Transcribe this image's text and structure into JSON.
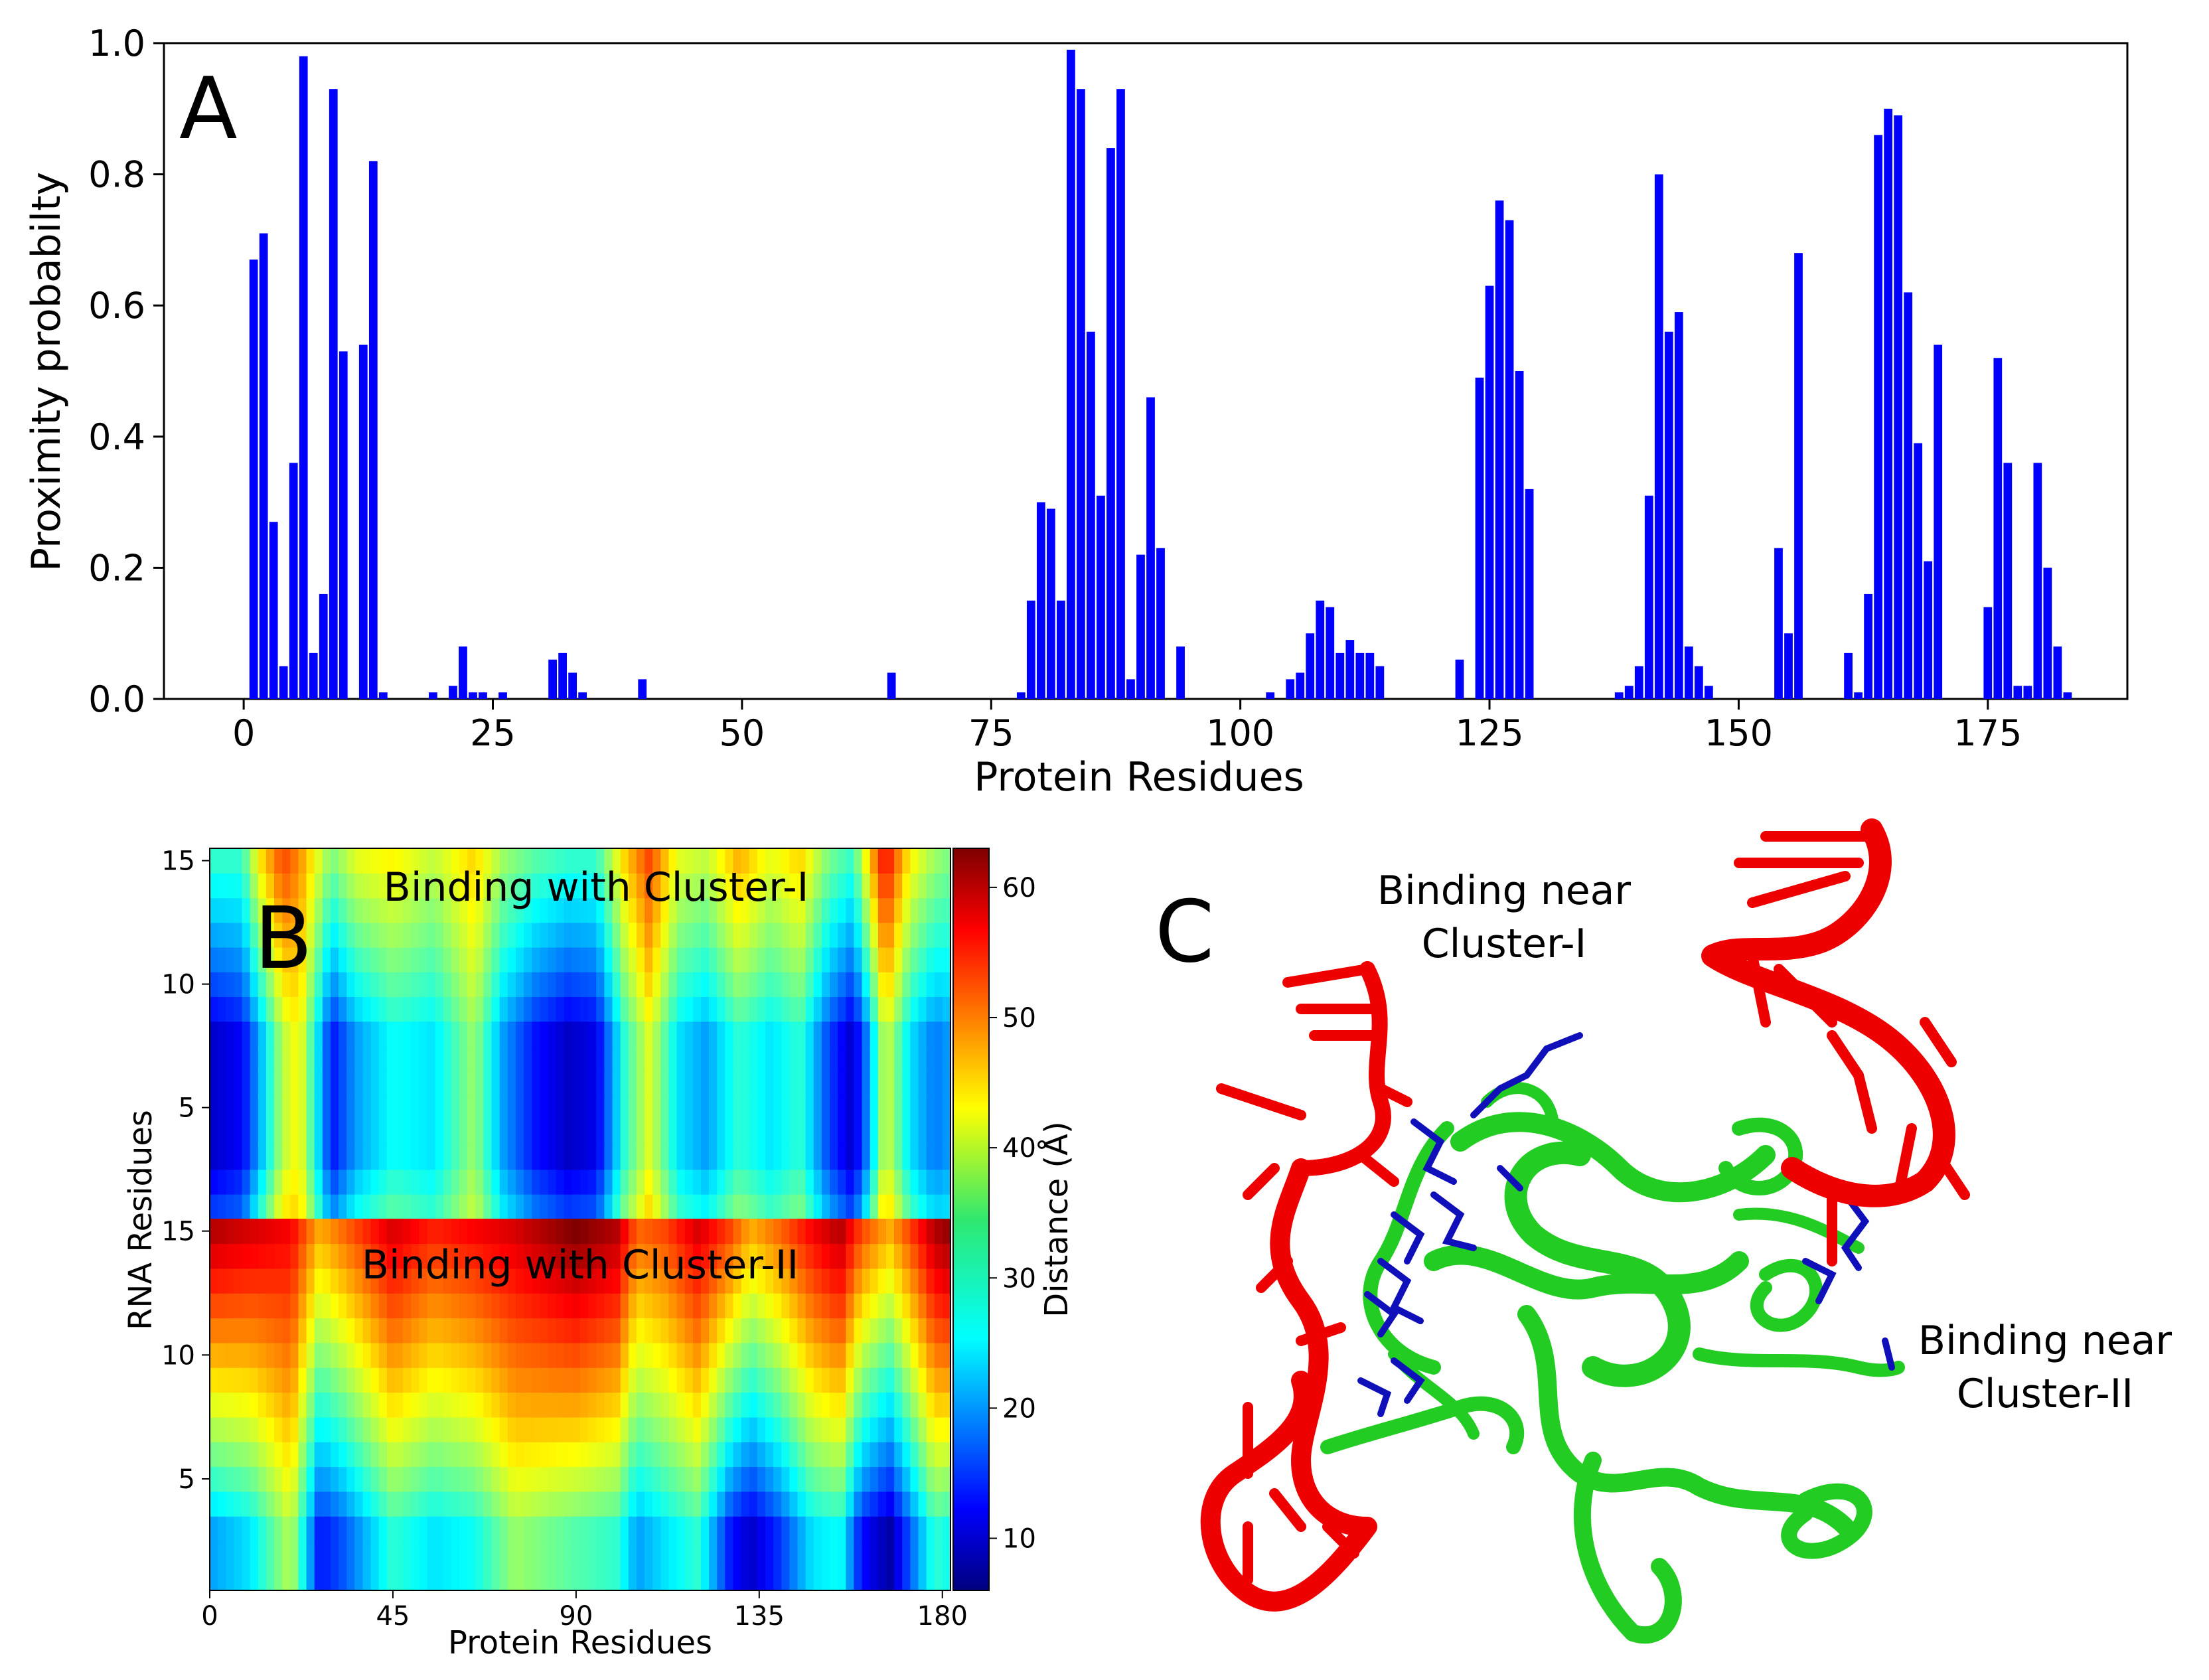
{
  "colors": {
    "bar": "#0000ff",
    "rna": "#ee0000",
    "protein": "#22cc22",
    "sidechain": "#1010bb"
  },
  "chart_data": [
    {
      "type": "bar",
      "panel_letter": "A",
      "xlabel": "Protein Residues",
      "ylabel": "Proximity probabilty",
      "xlim": [
        -8,
        189
      ],
      "ylim": [
        0,
        1.0
      ],
      "x_ticks": [
        "0",
        "25",
        "50",
        "75",
        "100",
        "125",
        "150",
        "175"
      ],
      "y_ticks": [
        "0.0",
        "0.2",
        "0.4",
        "0.6",
        "0.8",
        "1.0"
      ],
      "grid": false,
      "x": [
        1,
        2,
        3,
        4,
        5,
        6,
        7,
        8,
        9,
        10,
        11,
        12,
        13,
        14,
        19,
        20,
        21,
        22,
        23,
        24,
        25,
        26,
        31,
        32,
        33,
        34,
        40,
        65,
        78,
        79,
        80,
        81,
        82,
        83,
        84,
        85,
        86,
        87,
        88,
        89,
        90,
        91,
        92,
        93,
        94,
        96,
        98,
        100,
        103,
        105,
        106,
        107,
        108,
        109,
        110,
        111,
        112,
        113,
        114,
        115,
        122,
        124,
        125,
        126,
        127,
        128,
        129,
        130,
        134,
        137,
        138,
        139,
        140,
        141,
        142,
        143,
        144,
        145,
        146,
        147,
        154,
        155,
        156,
        161,
        162,
        163,
        164,
        165,
        166,
        167,
        168,
        169,
        170,
        175,
        176,
        177,
        178,
        179,
        180,
        181,
        182,
        183
      ],
      "values": [
        0.67,
        0.71,
        0.27,
        0.05,
        0.36,
        0.98,
        0.07,
        0.16,
        0.93,
        0.53,
        0.0,
        0.54,
        0.82,
        0.01,
        0.01,
        0.0,
        0.02,
        0.08,
        0.01,
        0.01,
        0.0,
        0.01,
        0.06,
        0.07,
        0.04,
        0.01,
        0.03,
        0.04,
        0.01,
        0.15,
        0.3,
        0.29,
        0.15,
        0.99,
        0.93,
        0.56,
        0.31,
        0.84,
        0.93,
        0.03,
        0.22,
        0.46,
        0.23,
        0.0,
        0.08,
        0.0,
        0.0,
        0.0,
        0.01,
        0.03,
        0.04,
        0.1,
        0.15,
        0.14,
        0.07,
        0.09,
        0.07,
        0.07,
        0.05,
        0.0,
        0.06,
        0.49,
        0.63,
        0.76,
        0.73,
        0.5,
        0.32,
        0.0,
        0.0,
        0.0,
        0.01,
        0.02,
        0.05,
        0.31,
        0.8,
        0.56,
        0.59,
        0.08,
        0.05,
        0.02,
        0.23,
        0.1,
        0.68,
        0.07,
        0.01,
        0.16,
        0.86,
        0.9,
        0.89,
        0.62,
        0.39,
        0.21,
        0.54,
        0.14,
        0.52,
        0.36,
        0.02,
        0.02,
        0.36,
        0.2,
        0.08,
        0.01
      ]
    },
    {
      "type": "heatmap",
      "panel_letter": "B",
      "xlabel": "Protein Residues",
      "ylabel": "RNA Residues",
      "x_ticks": [
        "0",
        "45",
        "90",
        "135",
        "180"
      ],
      "x_range": [
        0,
        182
      ],
      "colorbar_label": "Distance (Å)",
      "colorbar_ticks": [
        "10",
        "20",
        "30",
        "40",
        "50",
        "60"
      ],
      "colorbar_range": [
        6,
        63
      ],
      "colormap": "jet",
      "blocks": [
        {
          "annotation": "Binding with Cluster-I",
          "y_ticks": [
            "5",
            "10",
            "15"
          ],
          "y_range": [
            1,
            15
          ],
          "rows_low_distance": [
            3,
            8
          ],
          "profile_x": [
            0,
            8,
            12,
            18,
            22,
            30,
            36,
            45,
            55,
            65,
            72,
            80,
            88,
            95,
            102,
            108,
            115,
            122,
            130,
            138,
            145,
            152,
            158,
            162,
            166,
            172,
            178,
            182
          ],
          "profile_low": [
            10,
            13,
            22,
            38,
            42,
            14,
            22,
            28,
            26,
            36,
            22,
            14,
            10,
            12,
            30,
            40,
            26,
            22,
            30,
            26,
            30,
            17,
            10,
            22,
            40,
            26,
            20,
            22
          ],
          "profile_high": [
            30,
            30,
            42,
            52,
            48,
            34,
            40,
            42,
            38,
            44,
            36,
            32,
            30,
            30,
            44,
            52,
            40,
            38,
            46,
            40,
            44,
            34,
            30,
            44,
            56,
            42,
            36,
            34
          ]
        },
        {
          "annotation": "Binding with Cluster-II",
          "y_ticks": [
            "5",
            "10",
            "15"
          ],
          "y_range": [
            1,
            15
          ],
          "rows_low_distance": [
            1,
            3
          ],
          "profile_x": [
            0,
            10,
            20,
            27,
            33,
            45,
            55,
            65,
            75,
            90,
            100,
            105,
            112,
            120,
            128,
            133,
            140,
            148,
            155,
            160,
            167,
            172,
            178,
            182
          ],
          "profile_low": [
            22,
            26,
            38,
            14,
            18,
            30,
            26,
            28,
            36,
            32,
            30,
            22,
            26,
            30,
            14,
            10,
            16,
            26,
            28,
            14,
            8,
            18,
            30,
            28
          ],
          "profile_high": [
            60,
            58,
            56,
            46,
            50,
            58,
            54,
            56,
            58,
            63,
            60,
            50,
            52,
            58,
            52,
            46,
            50,
            56,
            60,
            52,
            46,
            52,
            60,
            62
          ]
        }
      ]
    }
  ],
  "panel_c": {
    "letter": "C",
    "label_cluster_1": [
      "Binding near",
      "Cluster-I"
    ],
    "label_cluster_2": [
      "Binding near",
      "Cluster-II"
    ]
  }
}
